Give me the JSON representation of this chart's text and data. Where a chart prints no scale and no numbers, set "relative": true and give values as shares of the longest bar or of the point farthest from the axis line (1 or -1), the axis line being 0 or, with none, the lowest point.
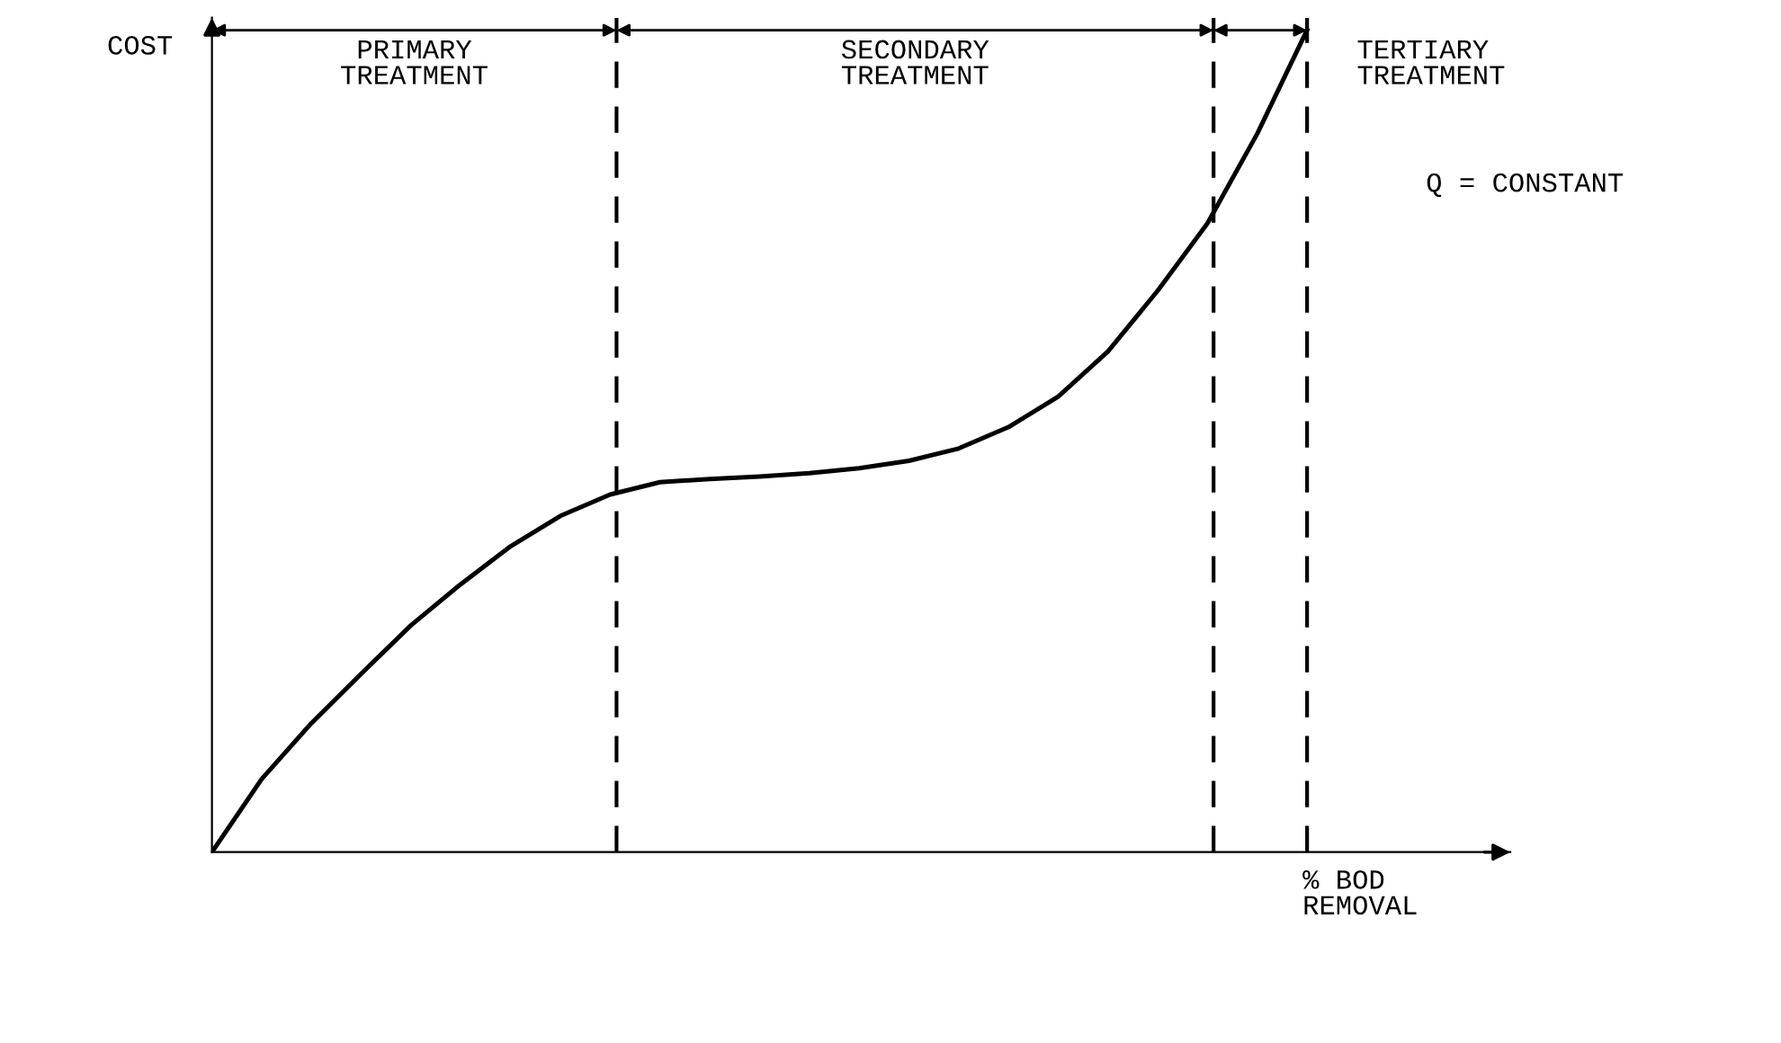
{
  "chart_data": {
    "type": "line",
    "relative": true,
    "marker": "none",
    "line_style": "solid",
    "ylabel": "COST",
    "xlabel": "% BOD\nREMOVAL",
    "categories": [
      null,
      null,
      null,
      null,
      null,
      null,
      null,
      null,
      null,
      null,
      null,
      null,
      null,
      null,
      null,
      null,
      null,
      null,
      null,
      null,
      null,
      null,
      null
    ],
    "series": [
      {
        "color": "#000000",
        "values": [
          0,
          0.089,
          0.157,
          0.217,
          0.276,
          0.326,
          0.372,
          0.409,
          0.435,
          0.45,
          0.454,
          0.457,
          0.461,
          0.467,
          0.476,
          0.491,
          0.517,
          0.554,
          0.609,
          0.683,
          0.765,
          0.874,
          1
        ]
      }
    ],
    "annotations": [
      "PRIMARY\nTREATMENT",
      "SECONDARY\nTREATMENT",
      "TERTIARY\nTREATMENT",
      "Q = CONSTANT"
    ]
  }
}
